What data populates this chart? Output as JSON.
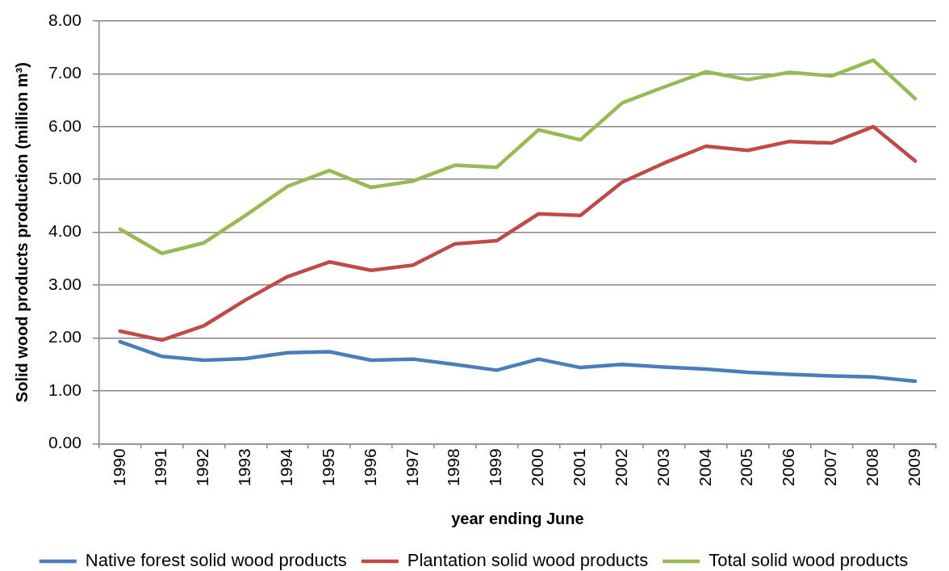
{
  "chart_data": {
    "type": "line",
    "xlabel": "year ending June",
    "ylabel": "Solid wood products production (million m³)",
    "categories": [
      "1990",
      "1991",
      "1992",
      "1993",
      "1994",
      "1995",
      "1996",
      "1997",
      "1998",
      "1999",
      "2000",
      "2001",
      "2002",
      "2003",
      "2004",
      "2005",
      "2006",
      "2007",
      "2008",
      "2009"
    ],
    "series": [
      {
        "name": "Native forest solid wood products",
        "color": "#4a7ebb",
        "values": [
          1.93,
          1.65,
          1.58,
          1.61,
          1.72,
          1.74,
          1.58,
          1.6,
          1.5,
          1.39,
          1.6,
          1.44,
          1.5,
          1.45,
          1.41,
          1.35,
          1.31,
          1.28,
          1.26,
          1.18
        ]
      },
      {
        "name": "Plantation solid wood products",
        "color": "#be4b48",
        "values": [
          2.13,
          1.96,
          2.23,
          2.72,
          3.16,
          3.44,
          3.28,
          3.38,
          3.78,
          3.84,
          4.35,
          4.32,
          4.95,
          5.31,
          5.63,
          5.55,
          5.72,
          5.69,
          6.0,
          5.35
        ]
      },
      {
        "name": "Total solid wood products",
        "color": "#98b954",
        "values": [
          4.06,
          3.6,
          3.8,
          4.32,
          4.87,
          5.17,
          4.85,
          4.97,
          5.27,
          5.23,
          5.94,
          5.75,
          6.45,
          6.75,
          7.04,
          6.89,
          7.03,
          6.96,
          7.26,
          6.53
        ]
      }
    ],
    "ylim": [
      0,
      8
    ],
    "yticks": [
      {
        "value": 0,
        "label": "0.00"
      },
      {
        "value": 1,
        "label": "1.00"
      },
      {
        "value": 2,
        "label": "2.00"
      },
      {
        "value": 3,
        "label": "3.00"
      },
      {
        "value": 4,
        "label": "4.00"
      },
      {
        "value": 5,
        "label": "5.00"
      },
      {
        "value": 6,
        "label": "6.00"
      },
      {
        "value": 7,
        "label": "7.00"
      },
      {
        "value": 8,
        "label": "8.00"
      }
    ],
    "grid": "y",
    "legend": "bottom",
    "marker": "none",
    "line_style": "solid"
  }
}
